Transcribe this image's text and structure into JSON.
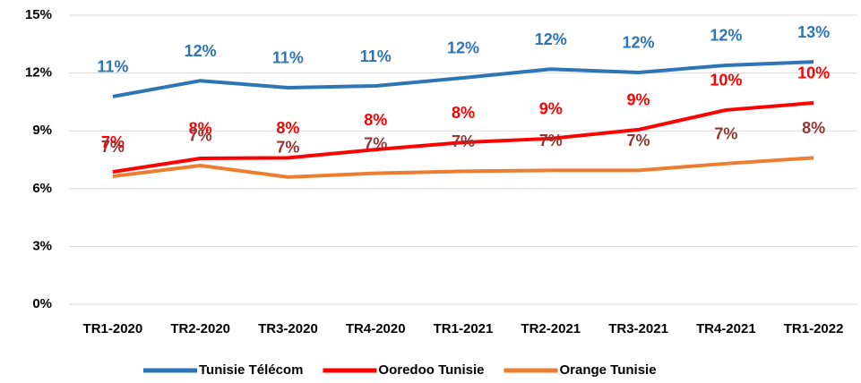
{
  "chart_data": {
    "type": "line",
    "categories": [
      "TR1-2020",
      "TR2-2020",
      "TR3-2020",
      "TR4-2020",
      "TR1-2021",
      "TR2-2021",
      "TR3-2021",
      "TR4-2021",
      "TR1-2022"
    ],
    "series": [
      {
        "name": "Tunisie Télécom",
        "color": "#2e75b6",
        "label_color": "#2e75b6",
        "values": [
          10.78,
          11.6,
          11.24,
          11.33,
          11.75,
          12.2,
          12.03,
          12.4,
          12.58
        ],
        "value_labels": [
          "11%",
          "12%",
          "11%",
          "11%",
          "12%",
          "12%",
          "12%",
          "12%",
          "13%"
        ]
      },
      {
        "name": "Ooredoo Tunisie",
        "color": "#ff0000",
        "label_color": "#ff0000",
        "values": [
          6.87,
          7.57,
          7.6,
          8.03,
          8.4,
          8.6,
          9.06,
          10.08,
          10.45
        ],
        "value_labels": [
          "7%",
          "8%",
          "8%",
          "8%",
          "8%",
          "9%",
          "9%",
          "10%",
          "10%"
        ]
      },
      {
        "name": "Orange Tunisie",
        "color": "#ed7d31",
        "label_color": "#943634",
        "values": [
          6.64,
          7.2,
          6.6,
          6.8,
          6.9,
          6.95,
          6.95,
          7.3,
          7.6
        ],
        "value_labels": [
          "7%",
          "7%",
          "7%",
          "7%",
          "7%",
          "7%",
          "7%",
          "7%",
          "8%"
        ]
      }
    ],
    "ylim": [
      0,
      15
    ],
    "yticks": [
      {
        "value": 0,
        "label": "0%"
      },
      {
        "value": 3,
        "label": "3%"
      },
      {
        "value": 6,
        "label": "6%"
      },
      {
        "value": 9,
        "label": "9%"
      },
      {
        "value": 12,
        "label": "12%"
      },
      {
        "value": 15,
        "label": "15%"
      }
    ],
    "grid": true,
    "legend": "bottom"
  }
}
